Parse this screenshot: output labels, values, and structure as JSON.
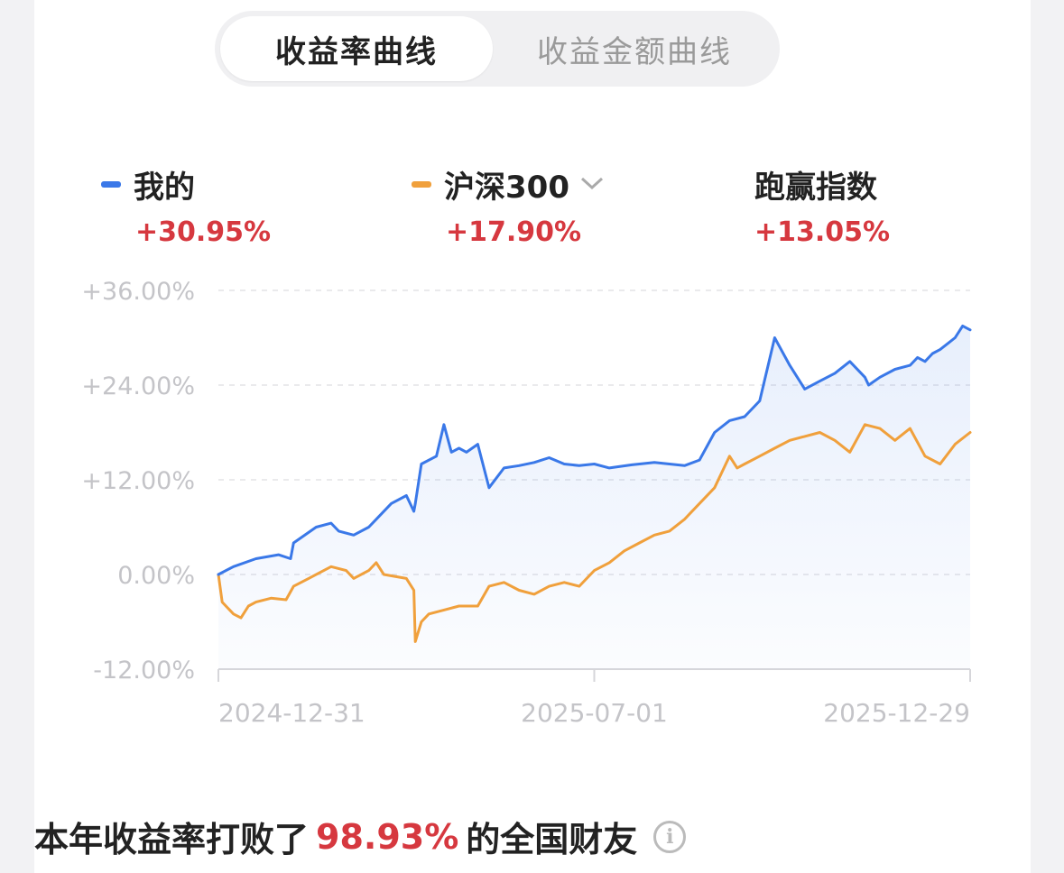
{
  "tabs": [
    {
      "label": "收益率曲线",
      "active": true
    },
    {
      "label": "收益金额曲线",
      "active": false
    }
  ],
  "legend": [
    {
      "name": "我的",
      "value": "+30.95%",
      "color": "#3a78e8"
    },
    {
      "name": "沪深300",
      "value": "+17.90%",
      "color": "#f0a03c",
      "has_dropdown": true
    },
    {
      "name": "跑赢指数",
      "value": "+13.05%"
    }
  ],
  "footer": {
    "prefix": "本年收益率打败了",
    "highlight": "98.93%",
    "suffix": "的全国财友",
    "icon": "info-icon"
  },
  "chart_data": {
    "type": "line",
    "y_ticks": [
      "+36.00%",
      "+24.00%",
      "+12.00%",
      "0.00%",
      "-12.00%"
    ],
    "y_tick_values": [
      36,
      24,
      12,
      0,
      -12
    ],
    "ylim": [
      -12,
      36
    ],
    "x_tick_labels": [
      "2024-12-31",
      "2025-07-01",
      "2025-12-29"
    ],
    "x_tick_values": [
      0,
      0.5,
      1.0
    ],
    "xlim": [
      0,
      1
    ],
    "grid": true,
    "series": [
      {
        "name": "我的",
        "color": "#3a78e8",
        "area_fill": true,
        "x": [
          0.0,
          0.02,
          0.05,
          0.08,
          0.096,
          0.1,
          0.13,
          0.15,
          0.16,
          0.18,
          0.2,
          0.21,
          0.23,
          0.25,
          0.26,
          0.262,
          0.27,
          0.29,
          0.3,
          0.31,
          0.32,
          0.33,
          0.345,
          0.36,
          0.38,
          0.4,
          0.42,
          0.44,
          0.46,
          0.48,
          0.5,
          0.52,
          0.55,
          0.58,
          0.6,
          0.62,
          0.64,
          0.66,
          0.68,
          0.7,
          0.72,
          0.74,
          0.76,
          0.78,
          0.8,
          0.82,
          0.84,
          0.86,
          0.865,
          0.88,
          0.9,
          0.92,
          0.93,
          0.94,
          0.95,
          0.96,
          0.98,
          0.99,
          1.0
        ],
        "y": [
          0.0,
          1.0,
          2.0,
          2.5,
          2.0,
          4.0,
          6.0,
          6.5,
          5.5,
          5.0,
          6.0,
          7.0,
          9.0,
          10.0,
          8.0,
          9.0,
          14.0,
          15.0,
          19.0,
          15.5,
          16.0,
          15.5,
          16.5,
          11.0,
          13.5,
          13.8,
          14.2,
          14.8,
          14.0,
          13.8,
          14.0,
          13.5,
          13.9,
          14.2,
          14.0,
          13.8,
          14.5,
          18.0,
          19.5,
          20.0,
          22.0,
          30.0,
          26.5,
          23.5,
          24.5,
          25.5,
          27.0,
          25.0,
          24.0,
          25.0,
          26.0,
          26.5,
          27.5,
          27.0,
          28.0,
          28.5,
          30.0,
          31.5,
          31.0
        ]
      },
      {
        "name": "沪深300",
        "color": "#f0a03c",
        "area_fill": false,
        "x": [
          0.0,
          0.005,
          0.02,
          0.03,
          0.04,
          0.05,
          0.07,
          0.09,
          0.1,
          0.12,
          0.15,
          0.17,
          0.18,
          0.2,
          0.21,
          0.22,
          0.25,
          0.26,
          0.262,
          0.27,
          0.28,
          0.3,
          0.32,
          0.345,
          0.36,
          0.38,
          0.4,
          0.42,
          0.44,
          0.46,
          0.48,
          0.5,
          0.52,
          0.54,
          0.56,
          0.58,
          0.6,
          0.62,
          0.64,
          0.66,
          0.68,
          0.69,
          0.7,
          0.72,
          0.74,
          0.76,
          0.78,
          0.8,
          0.82,
          0.84,
          0.86,
          0.88,
          0.9,
          0.92,
          0.94,
          0.96,
          0.98,
          1.0
        ],
        "y": [
          0.0,
          -3.5,
          -5.0,
          -5.5,
          -4.0,
          -3.5,
          -3.0,
          -3.2,
          -1.5,
          -0.5,
          1.0,
          0.5,
          -0.5,
          0.5,
          1.5,
          0.0,
          -0.5,
          -2.0,
          -8.5,
          -6.0,
          -5.0,
          -4.5,
          -4.0,
          -4.0,
          -1.5,
          -1.0,
          -2.0,
          -2.5,
          -1.5,
          -1.0,
          -1.5,
          0.5,
          1.5,
          3.0,
          4.0,
          5.0,
          5.5,
          7.0,
          9.0,
          11.0,
          15.0,
          13.5,
          14.0,
          15.0,
          16.0,
          17.0,
          17.5,
          18.0,
          17.0,
          15.5,
          19.0,
          18.5,
          17.0,
          18.5,
          15.0,
          14.0,
          16.5,
          18.0
        ]
      }
    ]
  }
}
